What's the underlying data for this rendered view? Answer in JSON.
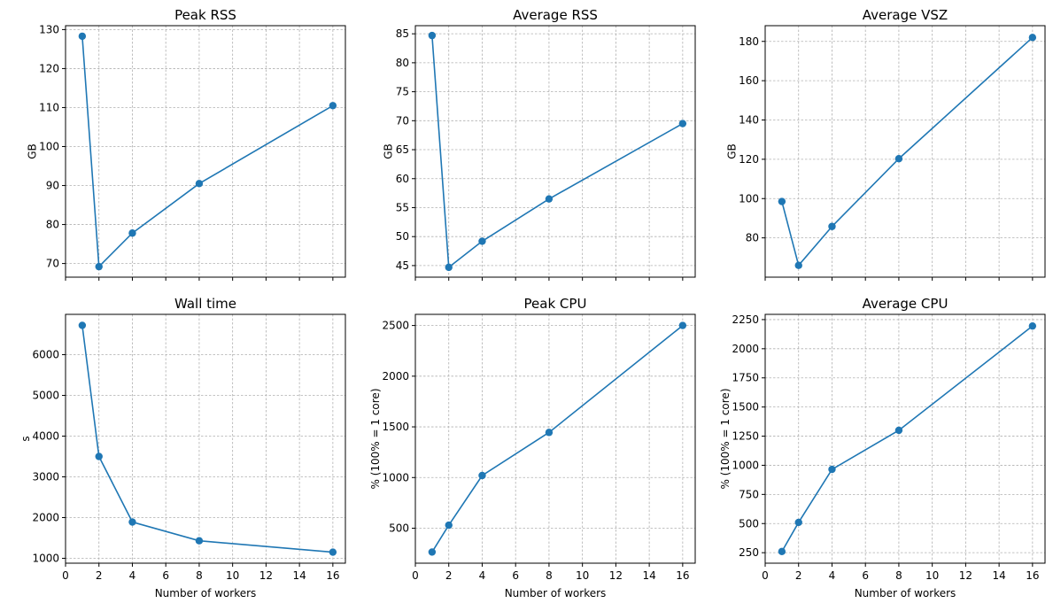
{
  "chart_data": [
    {
      "type": "line",
      "title": "Peak RSS",
      "xlabel": "",
      "ylabel": "GB",
      "x": [
        1,
        2,
        4,
        8,
        16
      ],
      "values": [
        128.3,
        69.2,
        77.8,
        90.5,
        110.5
      ],
      "xlim": [
        0,
        16.75
      ],
      "ylim": [
        66.5,
        131
      ],
      "yticks": [
        70,
        80,
        90,
        100,
        110,
        120,
        130
      ],
      "xticks": [
        0,
        2,
        4,
        6,
        8,
        10,
        12,
        14,
        16
      ],
      "show_xtick_labels": false,
      "grid": true,
      "color": "#1f77b4"
    },
    {
      "type": "line",
      "title": "Average RSS",
      "xlabel": "",
      "ylabel": "GB",
      "x": [
        1,
        2,
        4,
        8,
        16
      ],
      "values": [
        84.7,
        44.7,
        49.2,
        56.5,
        69.5
      ],
      "xlim": [
        0,
        16.75
      ],
      "ylim": [
        43,
        86.4
      ],
      "yticks": [
        45,
        50,
        55,
        60,
        65,
        70,
        75,
        80,
        85
      ],
      "xticks": [
        0,
        2,
        4,
        6,
        8,
        10,
        12,
        14,
        16
      ],
      "show_xtick_labels": false,
      "grid": true,
      "color": "#1f77b4"
    },
    {
      "type": "line",
      "title": "Average VSZ",
      "xlabel": "",
      "ylabel": "GB",
      "x": [
        1,
        2,
        4,
        8,
        16
      ],
      "values": [
        98.5,
        66,
        85.8,
        120.3,
        182
      ],
      "xlim": [
        0,
        16.75
      ],
      "ylim": [
        60,
        188
      ],
      "yticks": [
        80,
        100,
        120,
        140,
        160,
        180
      ],
      "xticks": [
        0,
        2,
        4,
        6,
        8,
        10,
        12,
        14,
        16
      ],
      "show_xtick_labels": false,
      "grid": true,
      "color": "#1f77b4"
    },
    {
      "type": "line",
      "title": "Wall time",
      "xlabel": "Number of workers",
      "ylabel": "s",
      "x": [
        1,
        2,
        4,
        8,
        16
      ],
      "values": [
        6720,
        3500,
        1890,
        1430,
        1150
      ],
      "xlim": [
        0,
        16.75
      ],
      "ylim": [
        880,
        6990
      ],
      "yticks": [
        1000,
        2000,
        3000,
        4000,
        5000,
        6000
      ],
      "xticks": [
        0,
        2,
        4,
        6,
        8,
        10,
        12,
        14,
        16
      ],
      "show_xtick_labels": true,
      "grid": true,
      "color": "#1f77b4"
    },
    {
      "type": "line",
      "title": "Peak CPU",
      "xlabel": "Number of workers",
      "ylabel": "% (100% = 1 core)",
      "x": [
        1,
        2,
        4,
        8,
        16
      ],
      "values": [
        265,
        530,
        1020,
        1445,
        2500
      ],
      "xlim": [
        0,
        16.75
      ],
      "ylim": [
        155,
        2610
      ],
      "yticks": [
        500,
        1000,
        1500,
        2000,
        2500
      ],
      "xticks": [
        0,
        2,
        4,
        6,
        8,
        10,
        12,
        14,
        16
      ],
      "show_xtick_labels": true,
      "grid": true,
      "color": "#1f77b4"
    },
    {
      "type": "line",
      "title": "Average CPU",
      "xlabel": "Number of workers",
      "ylabel": "% (100% = 1 core)",
      "x": [
        1,
        2,
        4,
        8,
        16
      ],
      "values": [
        260,
        510,
        965,
        1300,
        2195
      ],
      "xlim": [
        0,
        16.75
      ],
      "ylim": [
        160,
        2295
      ],
      "yticks": [
        250,
        500,
        750,
        1000,
        1250,
        1500,
        1750,
        2000,
        2250
      ],
      "xticks": [
        0,
        2,
        4,
        6,
        8,
        10,
        12,
        14,
        16
      ],
      "show_xtick_labels": true,
      "grid": true,
      "color": "#1f77b4"
    }
  ]
}
